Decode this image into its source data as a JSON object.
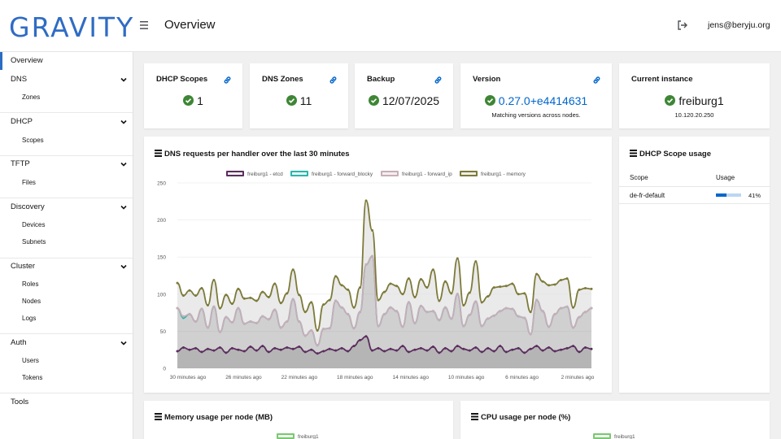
{
  "header": {
    "logo": "GRAVITY",
    "title": "Overview",
    "user": "jens@beryju.org"
  },
  "sidebar": {
    "overview": "Overview",
    "groups": [
      {
        "title": "DNS",
        "items": [
          "Zones"
        ]
      },
      {
        "title": "DHCP",
        "items": [
          "Scopes"
        ]
      },
      {
        "title": "TFTP",
        "items": [
          "Files"
        ]
      },
      {
        "title": "Discovery",
        "items": [
          "Devices",
          "Subnets"
        ]
      },
      {
        "title": "Cluster",
        "items": [
          "Roles",
          "Nodes",
          "Logs"
        ]
      },
      {
        "title": "Auth",
        "items": [
          "Users",
          "Tokens"
        ]
      }
    ],
    "tools": "Tools"
  },
  "cards": {
    "dhcp_scopes": {
      "title": "DHCP Scopes",
      "value": "1"
    },
    "dns_zones": {
      "title": "DNS Zones",
      "value": "11"
    },
    "backup": {
      "title": "Backup",
      "value": "12/07/2025"
    },
    "version": {
      "title": "Version",
      "value": "0.27.0+e4414631",
      "sub": "Matching versions across nodes."
    },
    "instance": {
      "title": "Current instance",
      "value": "freiburg1",
      "sub": "10.120.20.250"
    }
  },
  "dns_chart_title": "DNS requests per handler over the last 30 minutes",
  "scope_usage": {
    "title": "DHCP Scope usage",
    "col_scope": "Scope",
    "col_usage": "Usage",
    "rows": [
      {
        "scope": "de-fr-default",
        "usage": "41%",
        "fraction": 0.41
      }
    ]
  },
  "memory_title": "Memory usage per node (MB)",
  "memory_legend": "freiburg1",
  "cpu_title": "CPU usage per node (%)",
  "cpu_legend": "freiburg1",
  "colors": {
    "accent": "#2b6cc4",
    "success": "#3e8635",
    "link": "#0066cc"
  },
  "chart_data": {
    "type": "area",
    "ylim": [
      0,
      250
    ],
    "yticks": [
      "0",
      "50",
      "100",
      "150",
      "200",
      "250"
    ],
    "xticks": [
      "30 minutes ago",
      "26 minutes ago",
      "22 minutes ago",
      "18 minutes ago",
      "14 minutes ago",
      "10 minutes ago",
      "6 minutes ago",
      "2 minutes ago"
    ],
    "stacked": true,
    "legend_position": "top",
    "series": [
      {
        "name": "freiburg1 - etcd",
        "color": "#5b2d5e",
        "values": [
          23,
          28,
          25,
          27,
          22,
          26,
          24,
          28,
          21,
          27,
          25,
          23,
          29,
          24,
          30,
          22,
          27,
          25,
          28,
          26,
          29,
          22,
          25,
          20,
          23,
          26,
          24,
          27,
          23,
          30,
          38,
          43,
          24,
          27,
          23,
          26,
          24,
          30,
          22,
          25,
          27,
          24,
          29,
          21,
          27,
          23,
          30,
          26,
          24,
          28,
          22,
          27,
          23,
          30,
          22,
          25,
          27,
          21,
          26,
          30,
          24,
          28,
          23,
          25,
          27,
          30,
          22,
          28,
          26
        ]
      },
      {
        "name": "freiburg1 - forward_blocky",
        "color": "#2ab5ad",
        "values": [
          58,
          40,
          48,
          36,
          58,
          29,
          59,
          21,
          48,
          35,
          56,
          37,
          34,
          37,
          40,
          44,
          52,
          30,
          35,
          67,
          34,
          22,
          26,
          11,
          30,
          28,
          67,
          55,
          50,
          24,
          38,
          97,
          127,
          30,
          50,
          56,
          53,
          26,
          67,
          36,
          57,
          52,
          48,
          44,
          55,
          44,
          70,
          31,
          48,
          62,
          35,
          40,
          48,
          47,
          59,
          55,
          43,
          47,
          20,
          62,
          53,
          28,
          50,
          56,
          56,
          25,
          47,
          48,
          55
        ]
      },
      {
        "name": "freiburg1 - forward_ip",
        "color": "#c9adb8",
        "values": [
          0,
          2,
          0,
          0,
          0,
          0,
          0,
          0,
          0,
          0,
          0,
          0,
          0,
          0,
          0,
          0,
          0,
          0,
          0,
          0,
          0,
          0,
          0,
          0,
          0,
          0,
          0,
          0,
          0,
          0,
          0,
          0,
          0,
          0,
          0,
          0,
          0,
          0,
          0,
          0,
          0,
          0,
          0,
          0,
          0,
          0,
          0,
          0,
          0,
          0,
          0,
          0,
          0,
          0,
          0,
          0,
          0,
          0,
          0,
          0,
          0,
          0,
          0,
          0,
          0,
          0,
          0,
          0,
          0
        ]
      },
      {
        "name": "freiburg1 - memory",
        "color": "#7d7a3a",
        "values": [
          34,
          28,
          32,
          35,
          28,
          30,
          36,
          32,
          30,
          25,
          26,
          34,
          32,
          30,
          33,
          30,
          35,
          33,
          38,
          40,
          36,
          32,
          38,
          20,
          33,
          38,
          33,
          30,
          33,
          28,
          33,
          86,
          35,
          35,
          30,
          32,
          34,
          44,
          32,
          35,
          36,
          33,
          56,
          26,
          35,
          34,
          48,
          28,
          30,
          54,
          32,
          30,
          38,
          33,
          30,
          34,
          30,
          33,
          30,
          35,
          40,
          56,
          40,
          38,
          38,
          27,
          37,
          32,
          26
        ]
      }
    ]
  }
}
